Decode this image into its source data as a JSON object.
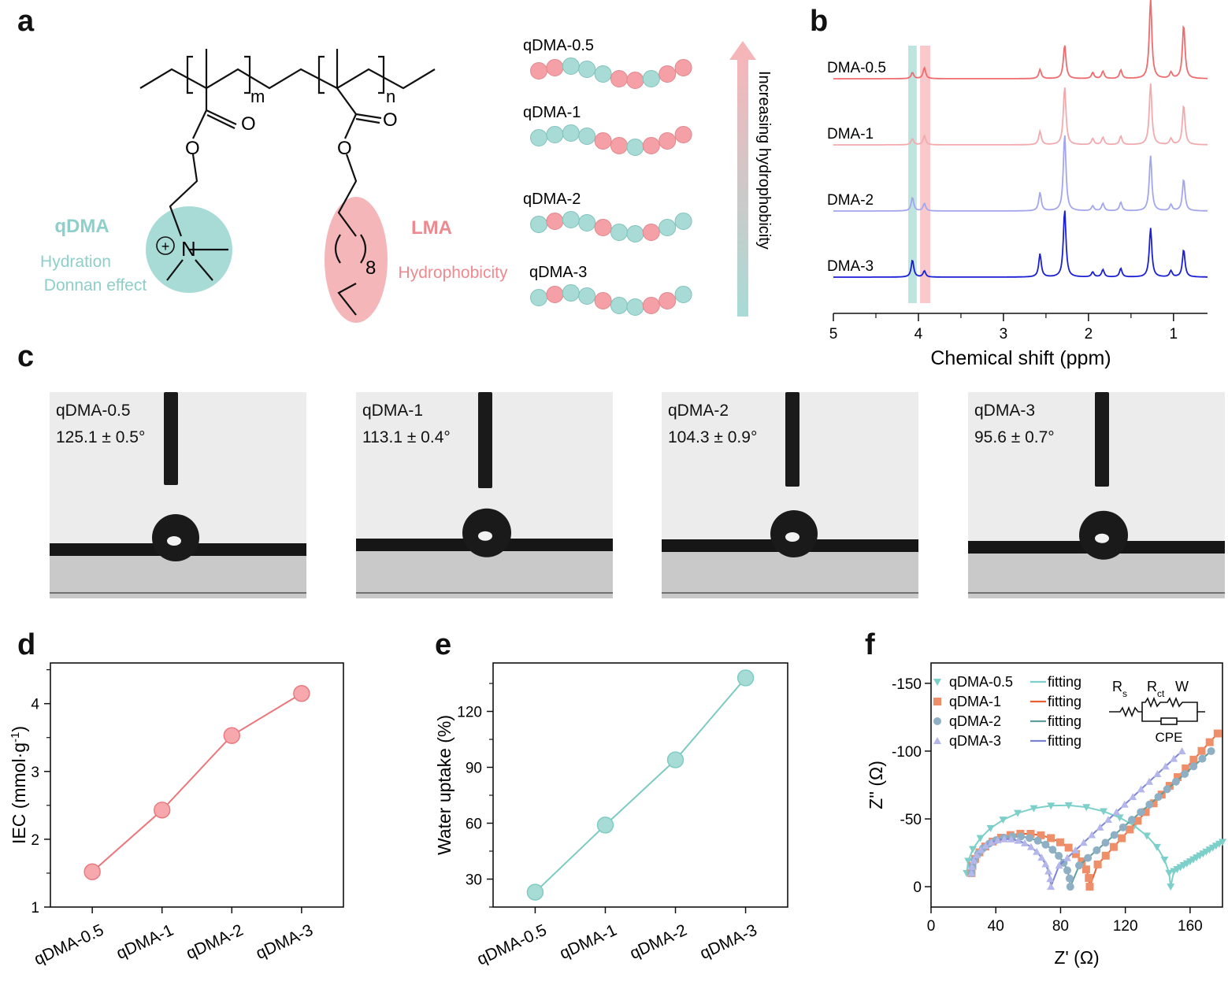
{
  "panel_labels": {
    "a": "a",
    "b": "b",
    "c": "c",
    "d": "d",
    "e": "e",
    "f": "f"
  },
  "panel_a": {
    "subscript_m": "m",
    "subscript_n": "n",
    "carbonyl_o_left": "O",
    "ester_o_left": "O",
    "carbonyl_o_right": "O",
    "ester_o_right": "O",
    "nitrogen": "N",
    "plus": "+",
    "repeat_count": "8",
    "qdma_label": "qDMA",
    "qdma_props": [
      "Hydration",
      "Donnan effect"
    ],
    "lma_label": "LMA",
    "lma_prop": "Hydrophobicity",
    "chains": [
      {
        "name": "qDMA-0.5",
        "beads": "pptttpptpp"
      },
      {
        "name": "qDMA-1",
        "beads": "ttttpptppp"
      },
      {
        "name": "qDMA-2",
        "beads": "tpttpttptt"
      },
      {
        "name": "qDMA-3",
        "beads": "tpttpttppt"
      }
    ],
    "arrow_label": "Increasing hydrophobicity",
    "colors": {
      "teal": "#a8dbd6",
      "pink": "#f5a0a6",
      "teal_text": "#8ecfc9",
      "pink_text": "#ee8a8f"
    }
  },
  "chart_data": [
    {
      "panel": "b",
      "type": "line",
      "title": "",
      "xlabel": "Chemical shift (ppm)",
      "ylabel": "",
      "xlim": [
        5,
        0.6
      ],
      "xticks": [
        "5",
        "4",
        "3",
        "2",
        "1"
      ],
      "highlight_bands_ppm": [
        [
          4.12,
          4.02
        ],
        [
          3.98,
          3.86
        ]
      ],
      "peaks_ppm": [
        {
          "ppm": 4.07,
          "intensity": [
            0.1,
            0.1,
            0.22,
            0.28
          ]
        },
        {
          "ppm": 3.93,
          "intensity": [
            0.18,
            0.15,
            0.12,
            0.1
          ]
        },
        {
          "ppm": 2.57,
          "intensity": [
            0.15,
            0.22,
            0.3,
            0.38
          ]
        },
        {
          "ppm": 2.28,
          "intensity": [
            0.55,
            0.95,
            1.25,
            1.1
          ]
        },
        {
          "ppm": 1.95,
          "intensity": [
            0.1,
            0.1,
            0.08,
            0.08
          ]
        },
        {
          "ppm": 1.83,
          "intensity": [
            0.12,
            0.12,
            0.12,
            0.12
          ]
        },
        {
          "ppm": 1.62,
          "intensity": [
            0.14,
            0.14,
            0.14,
            0.14
          ]
        },
        {
          "ppm": 1.27,
          "intensity": [
            1.3,
            1.0,
            0.9,
            0.8
          ]
        },
        {
          "ppm": 1.03,
          "intensity": [
            0.1,
            0.1,
            0.1,
            0.1
          ]
        },
        {
          "ppm": 0.88,
          "intensity": [
            0.88,
            0.65,
            0.52,
            0.45
          ]
        }
      ],
      "series": [
        {
          "name": "DMA-0.5",
          "color": "#ef6b6e"
        },
        {
          "name": "DMA-1",
          "color": "#f3aaae"
        },
        {
          "name": "DMA-2",
          "color": "#a3a6ec"
        },
        {
          "name": "DMA-3",
          "color": "#1a1fd6"
        }
      ]
    },
    {
      "panel": "d",
      "type": "line",
      "title": "",
      "xlabel": "",
      "ylabel": "IEC (mmol·g",
      "ylabel_sup": "-1",
      "ylabel_end": ")",
      "categories": [
        "qDMA-0.5",
        "qDMA-1",
        "qDMA-2",
        "qDMA-3"
      ],
      "values": [
        1.52,
        2.43,
        3.53,
        4.15
      ],
      "ylim": [
        1,
        4.6
      ],
      "yticks": [
        "1",
        "2",
        "3",
        "4"
      ],
      "color": "#e9777c",
      "marker_fill": "#f6a8ad"
    },
    {
      "panel": "e",
      "type": "line",
      "title": "",
      "xlabel": "",
      "ylabel": "Water uptake (%)",
      "categories": [
        "qDMA-0.5",
        "qDMA-1",
        "qDMA-2",
        "qDMA-3"
      ],
      "values": [
        23,
        59,
        94,
        138
      ],
      "ylim": [
        15,
        146
      ],
      "yticks": [
        "30",
        "60",
        "90",
        "120"
      ],
      "color": "#7dcac2",
      "marker_fill": "#a6dcd5"
    },
    {
      "panel": "f",
      "type": "scatter",
      "title": "",
      "xlabel": "Z' (Ω)",
      "ylabel": "Z'' (Ω)",
      "xlim": [
        0,
        180
      ],
      "ylim": [
        -165,
        15
      ],
      "xticks": [
        "0",
        "40",
        "80",
        "120",
        "160"
      ],
      "yticks": [
        "-150",
        "-100",
        "-50",
        "0"
      ],
      "fit_label": "fitting",
      "circuit": {
        "rs": "R",
        "rs_sub": "s",
        "rct": "R",
        "rct_sub": "ct",
        "w": "W",
        "cpe": "CPE"
      },
      "series": [
        {
          "name": "qDMA-0.5",
          "marker": "triangle-down",
          "color": "#7dcfc9",
          "fit_color": "#7dcfc9",
          "x0": 22,
          "arc_end": 148,
          "peak": -55,
          "tail_start": 148,
          "tail_end": 180,
          "tail_top": -33
        },
        {
          "name": "qDMA-1",
          "marker": "square",
          "color": "#ef8f6a",
          "fit_color": "#e8612f",
          "x0": 25,
          "arc_end": 98,
          "peak": -34,
          "tail_start": 98,
          "tail_end": 177,
          "tail_top": -113
        },
        {
          "name": "qDMA-2",
          "marker": "circle",
          "color": "#8fb0c4",
          "fit_color": "#5f9e9a",
          "x0": 25,
          "arc_end": 86,
          "peak": -32,
          "tail_start": 86,
          "tail_end": 173,
          "tail_top": -100
        },
        {
          "name": "qDMA-3",
          "marker": "triangle-up",
          "color": "#b4b7ea",
          "fit_color": "#7a82d6",
          "x0": 25,
          "arc_end": 74,
          "peak": -30,
          "tail_start": 74,
          "tail_end": 155,
          "tail_top": -100
        }
      ]
    }
  ],
  "panel_c": {
    "images": [
      {
        "name": "qDMA-0.5",
        "angle": "125.1 ± 0.5°"
      },
      {
        "name": "qDMA-1",
        "angle": "113.1 ± 0.4°"
      },
      {
        "name": "qDMA-2",
        "angle": "104.3 ± 0.9°"
      },
      {
        "name": "qDMA-3",
        "angle": "95.6 ± 0.7°"
      }
    ]
  }
}
